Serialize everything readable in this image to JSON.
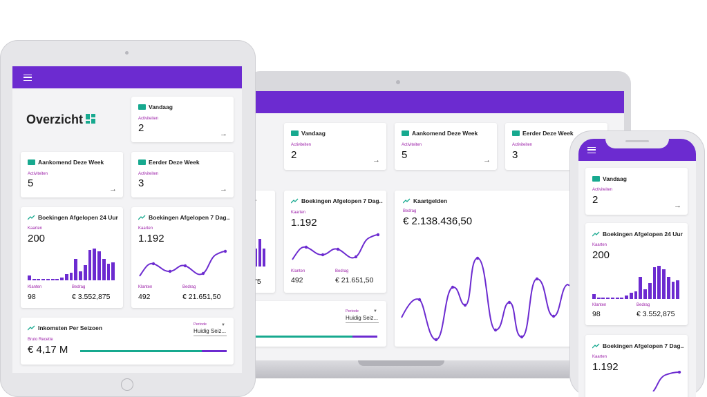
{
  "colors": {
    "primary": "#6c2bd0",
    "accent": "#17a98f",
    "label": "#9b1fa8"
  },
  "icons": {
    "menu": "hamburger-icon",
    "ticket": "ticket-icon",
    "trend": "trending-up-icon",
    "grid": "dashboard-grid-icon",
    "arrow": "arrow-right-icon"
  },
  "tablet": {
    "title": "Overzicht",
    "today": {
      "title": "Vandaag",
      "label": "Activiteiten",
      "value": "2"
    },
    "upcoming": {
      "title": "Aankomend Deze Week",
      "label": "Activiteiten",
      "value": "5"
    },
    "earlier": {
      "title": "Eerder Deze Week",
      "label": "Activiteiten",
      "value": "3"
    },
    "b24": {
      "title": "Boekingen Afgelopen 24 Uur",
      "label": "Kaarten",
      "value": "200",
      "clients_label": "Klanten",
      "clients": "98",
      "amount_label": "Bedrag",
      "amount": "€ 3.552,875"
    },
    "b7": {
      "title": "Boekingen Afgelopen 7 Dag...",
      "label": "Kaarten",
      "value": "1.192",
      "clients_label": "Klanten",
      "clients": "492",
      "amount_label": "Bedrag",
      "amount": "€ 21.651,50"
    },
    "season": {
      "title": "Inkomsten Per Seizoen",
      "label": "Bruto Recette",
      "value": "€ 4,17 M",
      "period_label": "Periode",
      "period": "Huidig Seiz..."
    }
  },
  "laptop": {
    "today": {
      "title": "Vandaag",
      "label": "Activiteiten",
      "value": "2"
    },
    "upcoming": {
      "title": "Aankomend Deze Week",
      "label": "Activiteiten",
      "value": "5"
    },
    "earlier": {
      "title": "Eerder Deze Week",
      "label": "Activiteiten",
      "value": "3"
    },
    "partial": {
      "title": "r",
      "value": "75"
    },
    "b7": {
      "title": "Boekingen Afgelopen 7 Dag...",
      "label": "Kaarten",
      "value": "1.192",
      "clients_label": "Klanten",
      "clients": "492",
      "amount_label": "Bedrag",
      "amount": "€ 21.651,50"
    },
    "tickets": {
      "title": "Kaartgelden",
      "label": "Bedrag",
      "value": "€ 2.138.436,50",
      "edge": "E"
    },
    "season": {
      "period_label": "Periode",
      "period": "Huidig Seiz..."
    }
  },
  "phone": {
    "today": {
      "title": "Vandaag",
      "label": "Activiteiten",
      "value": "2"
    },
    "b24": {
      "title": "Boekingen Afgelopen 24 Uur",
      "label": "Kaarten",
      "value": "200",
      "clients_label": "Klanten",
      "clients": "98",
      "amount_label": "Bedrag",
      "amount": "€ 3.552,875"
    },
    "b7": {
      "title": "Boekingen Afgelopen 7 Dag...",
      "label": "Kaarten",
      "value": "1.192"
    }
  },
  "chart_data": [
    {
      "type": "bar",
      "name_ref": "bookings-24h",
      "values": [
        3,
        1,
        1,
        1,
        1,
        1,
        1,
        2,
        4,
        5,
        14,
        6,
        10,
        20,
        21,
        19,
        14,
        11,
        12
      ]
    },
    {
      "type": "line",
      "name_ref": "bookings-7d",
      "values": [
        2,
        6,
        4,
        5,
        3,
        8,
        12
      ]
    },
    {
      "type": "line",
      "name_ref": "ticket-revenue",
      "values": [
        4,
        6,
        1,
        9,
        7,
        8,
        2,
        13,
        2,
        9,
        3,
        7
      ]
    }
  ]
}
